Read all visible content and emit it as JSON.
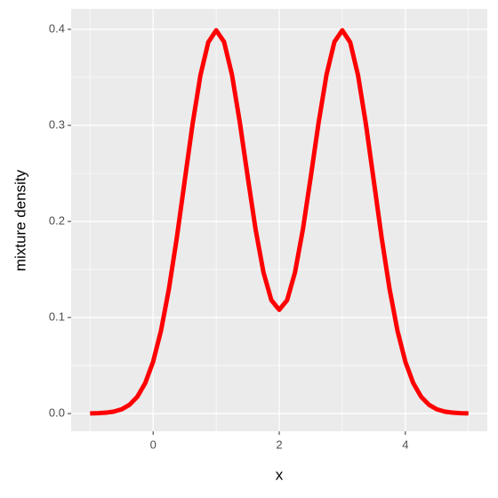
{
  "chart_data": {
    "type": "line",
    "x_label": "x",
    "y_label": "mixture density",
    "x": [
      -1,
      -0.875,
      -0.75,
      -0.625,
      -0.5,
      -0.375,
      -0.25,
      -0.125,
      0,
      0.125,
      0.25,
      0.375,
      0.5,
      0.625,
      0.75,
      0.875,
      1,
      1.125,
      1.25,
      1.375,
      1.5,
      1.625,
      1.75,
      1.875,
      2,
      2.125,
      2.25,
      2.375,
      2.5,
      2.625,
      2.75,
      2.875,
      3,
      3.125,
      3.25,
      3.375,
      3.5,
      3.625,
      3.75,
      3.875,
      4,
      4.125,
      4.25,
      4.375,
      4.5,
      4.625,
      4.75,
      4.875,
      5
    ],
    "values": [
      0.0001,
      0.0004,
      0.0009,
      0.002,
      0.0044,
      0.0091,
      0.0175,
      0.0317,
      0.054,
      0.0863,
      0.1295,
      0.1826,
      0.242,
      0.3011,
      0.3521,
      0.3866,
      0.399,
      0.387,
      0.3529,
      0.3031,
      0.2464,
      0.1917,
      0.147,
      0.118,
      0.108,
      0.118,
      0.147,
      0.1917,
      0.2464,
      0.3031,
      0.3529,
      0.387,
      0.399,
      0.3866,
      0.3521,
      0.3011,
      0.242,
      0.1826,
      0.1295,
      0.0863,
      0.054,
      0.0317,
      0.0175,
      0.0091,
      0.0044,
      0.002,
      0.0009,
      0.0004,
      0.0001
    ],
    "color": "#ff0000",
    "xlim": [
      -1.3,
      5.3
    ],
    "ylim": [
      -0.0185,
      0.4213
    ],
    "xticks": [
      0,
      2,
      4
    ],
    "yticks": [
      {
        "value": 0,
        "label": "0.0"
      },
      {
        "value": 0.1,
        "label": "0.1"
      },
      {
        "value": 0.2,
        "label": "0.2"
      },
      {
        "value": 0.3,
        "label": "0.3"
      },
      {
        "value": 0.4,
        "label": "0.4"
      }
    ],
    "grid": true
  }
}
